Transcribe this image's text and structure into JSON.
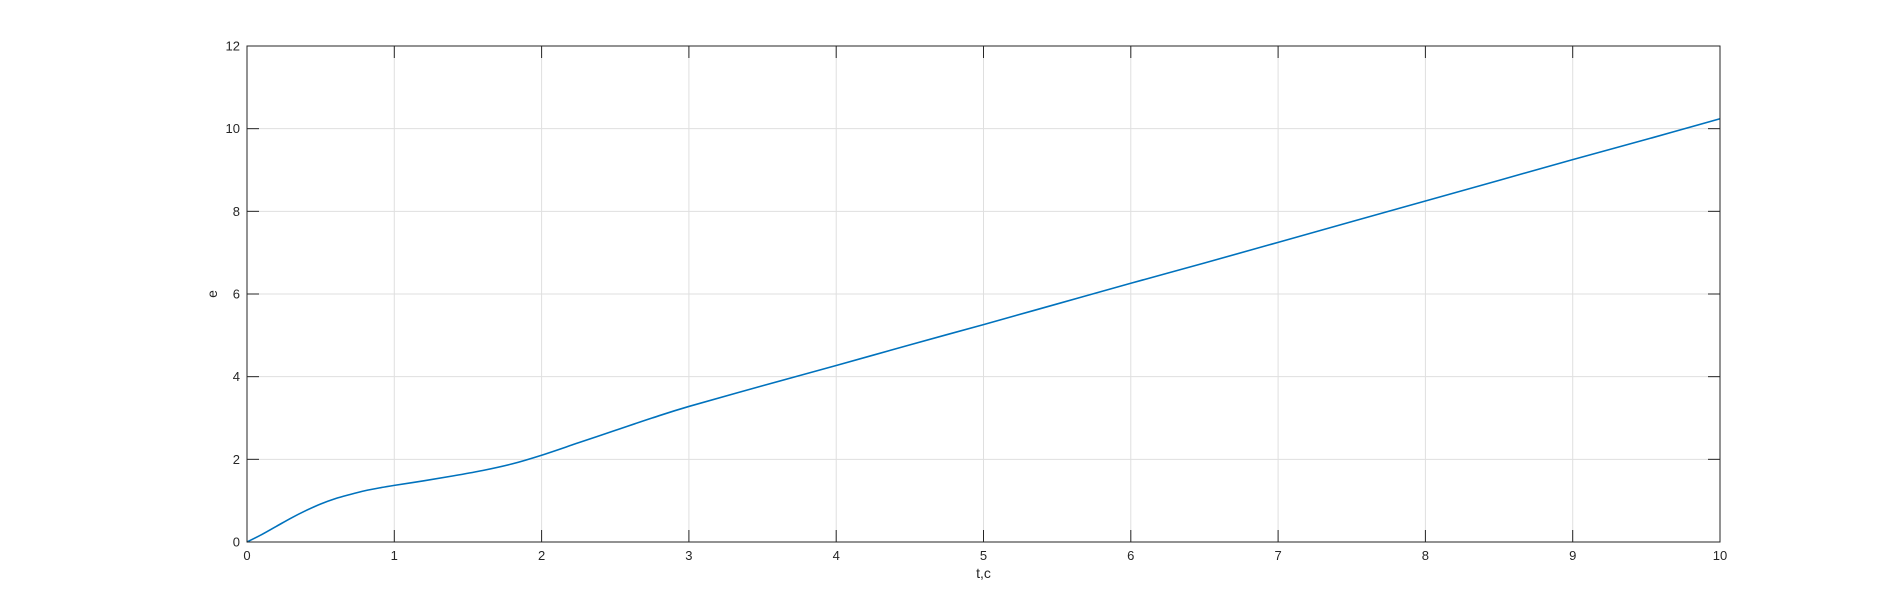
{
  "chart_data": {
    "type": "line",
    "title": "",
    "xlabel": "t,c",
    "ylabel": "e",
    "xlim": [
      0,
      10
    ],
    "ylim": [
      0,
      12
    ],
    "xticks": [
      0,
      1,
      2,
      3,
      4,
      5,
      6,
      7,
      8,
      9,
      10
    ],
    "yticks": [
      0,
      2,
      4,
      6,
      8,
      10,
      12
    ],
    "grid": true,
    "legend": "none",
    "series": [
      {
        "color": "#0072BD",
        "x": [
          0,
          0.1,
          0.2,
          0.3,
          0.4,
          0.5,
          0.6,
          0.7,
          0.8,
          0.9,
          1.0,
          1.2,
          1.4,
          1.6,
          1.8,
          2.0,
          2.25,
          2.5,
          2.75,
          3.0,
          3.5,
          4.0,
          4.5,
          5.0,
          5.5,
          6.0,
          6.5,
          7.0,
          7.5,
          8.0,
          8.5,
          9.0,
          9.5,
          10.0
        ],
        "y": [
          0,
          0.18,
          0.38,
          0.58,
          0.76,
          0.92,
          1.05,
          1.15,
          1.24,
          1.31,
          1.37,
          1.48,
          1.6,
          1.73,
          1.89,
          2.1,
          2.4,
          2.7,
          3.0,
          3.28,
          3.78,
          4.27,
          4.77,
          5.26,
          5.76,
          6.26,
          6.75,
          7.25,
          7.75,
          8.25,
          8.75,
          9.25,
          9.74,
          10.24
        ]
      }
    ]
  }
}
